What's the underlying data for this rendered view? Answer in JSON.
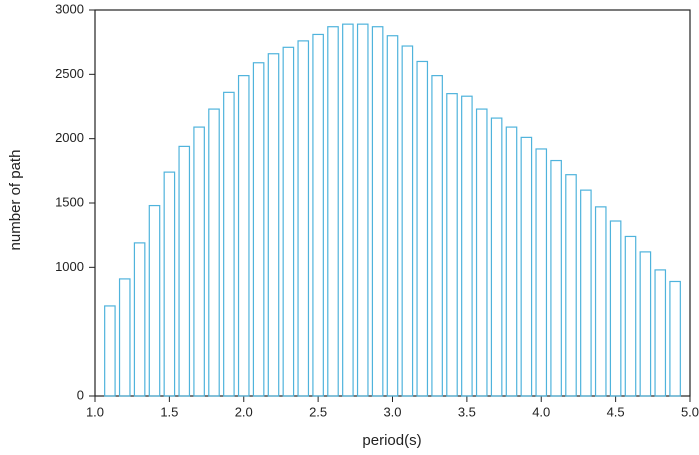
{
  "chart_data": {
    "type": "bar",
    "x_label": "period(s)",
    "y_label": "number of path",
    "x": [
      1.1,
      1.2,
      1.3,
      1.4,
      1.5,
      1.6,
      1.7,
      1.8,
      1.9,
      2.0,
      2.1,
      2.2,
      2.3,
      2.4,
      2.5,
      2.6,
      2.7,
      2.8,
      2.9,
      3.0,
      3.1,
      3.2,
      3.3,
      3.4,
      3.5,
      3.6,
      3.7,
      3.8,
      3.9,
      4.0,
      4.1,
      4.2,
      4.3,
      4.4,
      4.5,
      4.6,
      4.7,
      4.8,
      4.9
    ],
    "values": [
      700,
      910,
      1190,
      1480,
      1740,
      1940,
      2090,
      2230,
      2360,
      2490,
      2590,
      2660,
      2710,
      2760,
      2810,
      2870,
      2890,
      2890,
      2870,
      2800,
      2720,
      2600,
      2490,
      2350,
      2330,
      2230,
      2160,
      2090,
      2010,
      1920,
      1830,
      1720,
      1600,
      1470,
      1360,
      1240,
      1120,
      980,
      890
    ],
    "color": "#4fb3dc",
    "xlim": [
      1,
      5
    ],
    "xticks": [
      {
        "value": 1,
        "label": "1.0"
      },
      1.5,
      {
        "value": 2,
        "label": "2.0"
      },
      2.5,
      {
        "value": 3,
        "label": "3.0"
      },
      3.5,
      {
        "value": 4,
        "label": "4.0"
      },
      4.5,
      {
        "value": 5,
        "label": "5.0"
      }
    ],
    "ylim": [
      0,
      3000
    ],
    "yticks": [
      0,
      1000,
      1500,
      2000,
      2500,
      3000
    ]
  }
}
